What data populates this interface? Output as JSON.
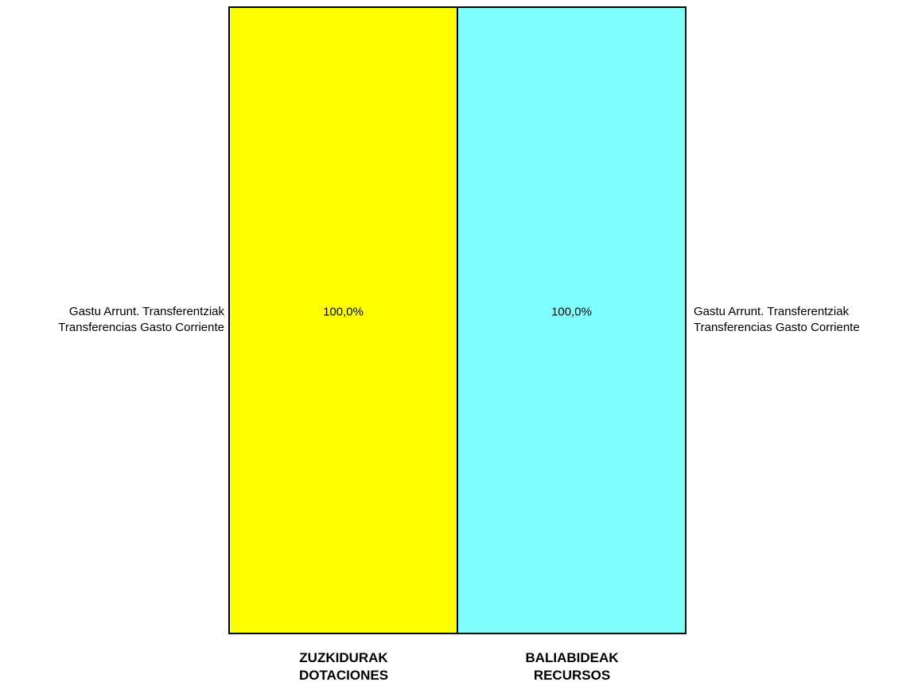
{
  "chart_data": {
    "type": "bar",
    "subtype": "100% stacked columns",
    "categories": [
      {
        "line1": "ZUZKIDURAK",
        "line2": "DOTACIONES"
      },
      {
        "line1": "BALIABIDEAK",
        "line2": "RECURSOS"
      }
    ],
    "series": [
      {
        "segment_label_line1": "Gastu Arrunt. Transferentziak",
        "segment_label_line2": "Transferencias Gasto Corriente",
        "values": [
          100.0,
          100.0
        ],
        "value_labels": [
          "100,0%",
          "100,0%"
        ]
      }
    ],
    "bar_colors": [
      "#ffff00",
      "#80ffff"
    ],
    "ylim": [
      0,
      100
    ],
    "grid": false,
    "legend": "none"
  }
}
